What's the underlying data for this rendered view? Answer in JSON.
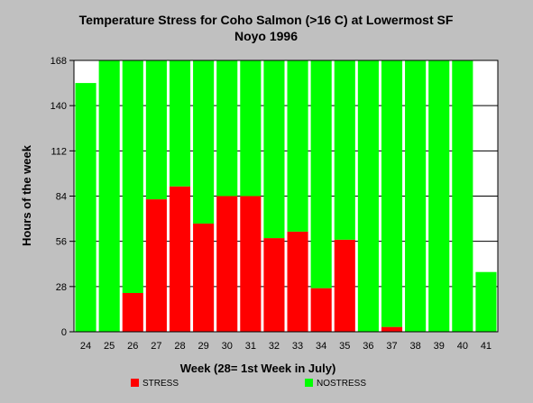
{
  "chart_data": {
    "type": "bar",
    "stacked": true,
    "title_lines": [
      "Temperature Stress for Coho Salmon (>16 C) at Lowermost SF",
      "Noyo 1996"
    ],
    "xlabel": "Week (28= 1st Week in July)",
    "ylabel": "Hours of the week",
    "categories": [
      "24",
      "25",
      "26",
      "27",
      "28",
      "29",
      "30",
      "31",
      "32",
      "33",
      "34",
      "35",
      "36",
      "37",
      "38",
      "39",
      "40",
      "41"
    ],
    "ylim": [
      0,
      168
    ],
    "yticks": [
      0,
      28,
      56,
      84,
      112,
      140,
      168
    ],
    "grid": true,
    "legend_position": "bottom",
    "series": [
      {
        "name": "STRESS",
        "color": "#ff0000",
        "values": [
          0,
          0,
          24,
          82,
          90,
          67,
          84,
          84,
          58,
          62,
          27,
          57,
          0,
          3,
          0,
          0,
          0,
          0
        ]
      },
      {
        "name": "NOSTRESS",
        "color": "#00ff00",
        "values": [
          154,
          168,
          144,
          86,
          78,
          101,
          84,
          84,
          110,
          106,
          141,
          111,
          168,
          165,
          168,
          168,
          168,
          37
        ]
      }
    ],
    "plot_background": "#ffffff",
    "page_background": "#c0c0c0"
  }
}
